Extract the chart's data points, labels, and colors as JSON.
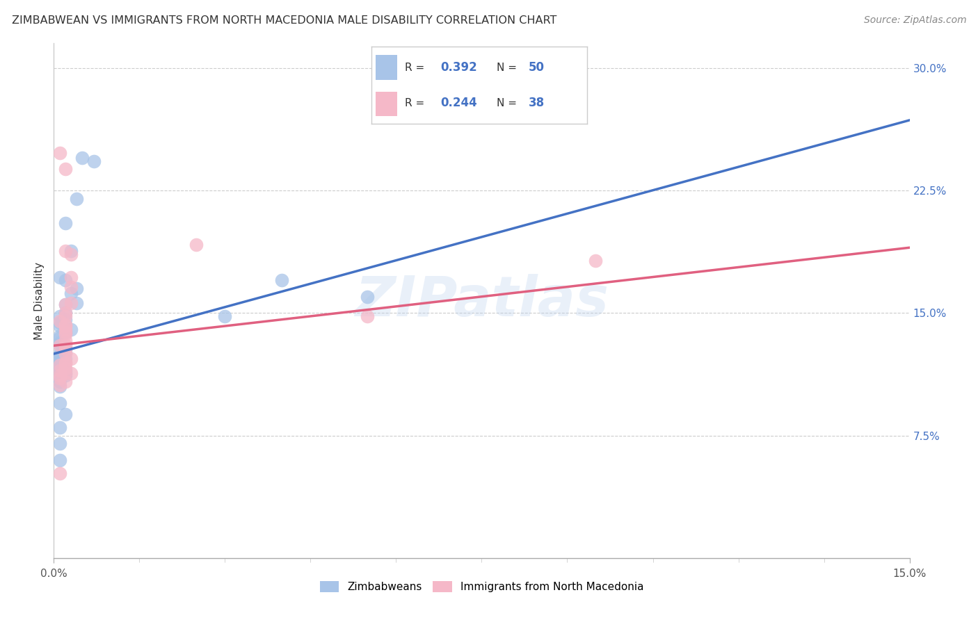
{
  "title": "ZIMBABWEAN VS IMMIGRANTS FROM NORTH MACEDONIA MALE DISABILITY CORRELATION CHART",
  "source": "Source: ZipAtlas.com",
  "ylabel": "Male Disability",
  "xlim": [
    0.0,
    0.15
  ],
  "ylim": [
    0.0,
    0.315
  ],
  "blue_R": 0.392,
  "blue_N": 50,
  "pink_R": 0.244,
  "pink_N": 38,
  "blue_color": "#a8c4e8",
  "pink_color": "#f5b8c8",
  "blue_line_color": "#4472c4",
  "pink_line_color": "#e06080",
  "watermark": "ZIPatlas",
  "legend_label_blue": "Zimbabweans",
  "legend_label_pink": "Immigrants from North Macedonia",
  "blue_line_x0": 0.0,
  "blue_line_y0": 0.125,
  "blue_line_x1": 0.15,
  "blue_line_y1": 0.268,
  "pink_line_x0": 0.0,
  "pink_line_y0": 0.13,
  "pink_line_x1": 0.15,
  "pink_line_y1": 0.19,
  "blue_scatter_x": [
    0.005,
    0.007,
    0.004,
    0.002,
    0.003,
    0.001,
    0.002,
    0.004,
    0.003,
    0.004,
    0.002,
    0.002,
    0.001,
    0.002,
    0.001,
    0.001,
    0.003,
    0.002,
    0.001,
    0.001,
    0.001,
    0.001,
    0.002,
    0.002,
    0.001,
    0.001,
    0.001,
    0.002,
    0.001,
    0.001,
    0.001,
    0.001,
    0.001,
    0.001,
    0.002,
    0.001,
    0.002,
    0.002,
    0.001,
    0.001,
    0.001,
    0.001,
    0.002,
    0.075,
    0.055,
    0.04,
    0.03,
    0.001,
    0.001,
    0.001
  ],
  "blue_scatter_y": [
    0.245,
    0.243,
    0.22,
    0.205,
    0.188,
    0.172,
    0.17,
    0.165,
    0.162,
    0.156,
    0.155,
    0.15,
    0.148,
    0.146,
    0.144,
    0.142,
    0.14,
    0.138,
    0.136,
    0.135,
    0.132,
    0.13,
    0.128,
    0.126,
    0.125,
    0.124,
    0.123,
    0.122,
    0.12,
    0.119,
    0.118,
    0.116,
    0.115,
    0.115,
    0.115,
    0.114,
    0.113,
    0.112,
    0.11,
    0.108,
    0.105,
    0.095,
    0.088,
    0.285,
    0.16,
    0.17,
    0.148,
    0.08,
    0.07,
    0.06
  ],
  "pink_scatter_x": [
    0.001,
    0.002,
    0.025,
    0.002,
    0.003,
    0.003,
    0.003,
    0.003,
    0.002,
    0.002,
    0.002,
    0.001,
    0.002,
    0.002,
    0.002,
    0.002,
    0.002,
    0.001,
    0.002,
    0.002,
    0.003,
    0.002,
    0.002,
    0.001,
    0.002,
    0.001,
    0.003,
    0.002,
    0.001,
    0.001,
    0.002,
    0.001,
    0.055,
    0.095,
    0.002,
    0.002,
    0.002,
    0.001
  ],
  "pink_scatter_y": [
    0.248,
    0.238,
    0.192,
    0.188,
    0.186,
    0.172,
    0.166,
    0.156,
    0.155,
    0.15,
    0.148,
    0.145,
    0.143,
    0.14,
    0.137,
    0.133,
    0.13,
    0.13,
    0.128,
    0.125,
    0.122,
    0.12,
    0.119,
    0.118,
    0.116,
    0.115,
    0.113,
    0.113,
    0.112,
    0.11,
    0.108,
    0.106,
    0.148,
    0.182,
    0.142,
    0.138,
    0.13,
    0.052
  ]
}
